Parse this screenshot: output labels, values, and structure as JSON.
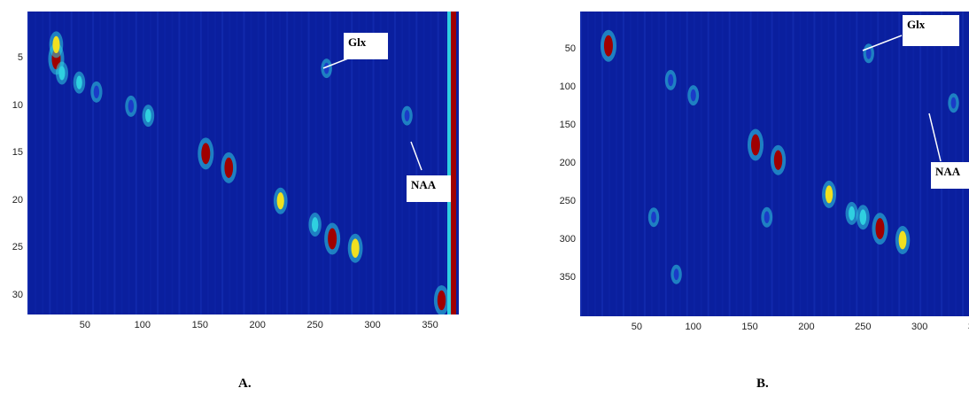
{
  "chart_data": [
    {
      "type": "heatmap",
      "panel_label": "A.",
      "xlim": [
        0,
        375
      ],
      "ylim": [
        0,
        32
      ],
      "x_ticks": [
        "50",
        "100",
        "150",
        "200",
        "250",
        "300",
        "350"
      ],
      "x_tick_values": [
        50,
        100,
        150,
        200,
        250,
        300,
        350
      ],
      "y_ticks": [
        "5",
        "10",
        "15",
        "20",
        "25",
        "30"
      ],
      "y_tick_values": [
        5,
        10,
        15,
        20,
        25,
        30
      ],
      "annotations": [
        "Glx",
        "NAA"
      ],
      "hotspots": [
        {
          "x": 25,
          "y": 5,
          "intensity": 1.0
        },
        {
          "x": 25,
          "y": 3.5,
          "intensity": 0.7
        },
        {
          "x": 30,
          "y": 6.5,
          "intensity": 0.5
        },
        {
          "x": 45,
          "y": 7.5,
          "intensity": 0.45
        },
        {
          "x": 60,
          "y": 8.5,
          "intensity": 0.4
        },
        {
          "x": 90,
          "y": 10,
          "intensity": 0.4
        },
        {
          "x": 105,
          "y": 11,
          "intensity": 0.45
        },
        {
          "x": 155,
          "y": 15,
          "intensity": 1.0
        },
        {
          "x": 175,
          "y": 16.5,
          "intensity": 0.95
        },
        {
          "x": 220,
          "y": 20,
          "intensity": 0.7
        },
        {
          "x": 250,
          "y": 22.5,
          "intensity": 0.55
        },
        {
          "x": 265,
          "y": 24,
          "intensity": 1.0
        },
        {
          "x": 285,
          "y": 25,
          "intensity": 0.85
        },
        {
          "x": 260,
          "y": 6,
          "intensity": 0.3
        },
        {
          "x": 330,
          "y": 11,
          "intensity": 0.3
        },
        {
          "x": 360,
          "y": 30.5,
          "intensity": 0.9
        }
      ]
    },
    {
      "type": "heatmap",
      "panel_label": "B.",
      "xlim": [
        0,
        375
      ],
      "ylim": [
        0,
        400
      ],
      "x_ticks": [
        "50",
        "100",
        "150",
        "200",
        "250",
        "300",
        "350"
      ],
      "x_tick_values": [
        50,
        100,
        150,
        200,
        250,
        300,
        350
      ],
      "y_ticks": [
        "50",
        "100",
        "150",
        "200",
        "250",
        "300",
        "350"
      ],
      "y_tick_values": [
        50,
        100,
        150,
        200,
        250,
        300,
        350
      ],
      "annotations": [
        "Glx",
        "NAA"
      ],
      "hotspots": [
        {
          "x": 25,
          "y": 45,
          "intensity": 1.0
        },
        {
          "x": 155,
          "y": 175,
          "intensity": 1.0
        },
        {
          "x": 175,
          "y": 195,
          "intensity": 0.9
        },
        {
          "x": 220,
          "y": 240,
          "intensity": 0.75
        },
        {
          "x": 265,
          "y": 285,
          "intensity": 1.0
        },
        {
          "x": 285,
          "y": 300,
          "intensity": 0.8
        },
        {
          "x": 250,
          "y": 270,
          "intensity": 0.6
        },
        {
          "x": 240,
          "y": 265,
          "intensity": 0.5
        },
        {
          "x": 80,
          "y": 90,
          "intensity": 0.35
        },
        {
          "x": 100,
          "y": 110,
          "intensity": 0.35
        },
        {
          "x": 255,
          "y": 55,
          "intensity": 0.3
        },
        {
          "x": 330,
          "y": 120,
          "intensity": 0.3
        },
        {
          "x": 65,
          "y": 270,
          "intensity": 0.3
        },
        {
          "x": 85,
          "y": 345,
          "intensity": 0.3
        },
        {
          "x": 165,
          "y": 270,
          "intensity": 0.35
        }
      ]
    }
  ],
  "colors": {
    "background": "#0a1f9e",
    "low": "#1a3bc8",
    "mid": "#2fd0e0",
    "high": "#f0e020",
    "peak": "#a00000"
  }
}
